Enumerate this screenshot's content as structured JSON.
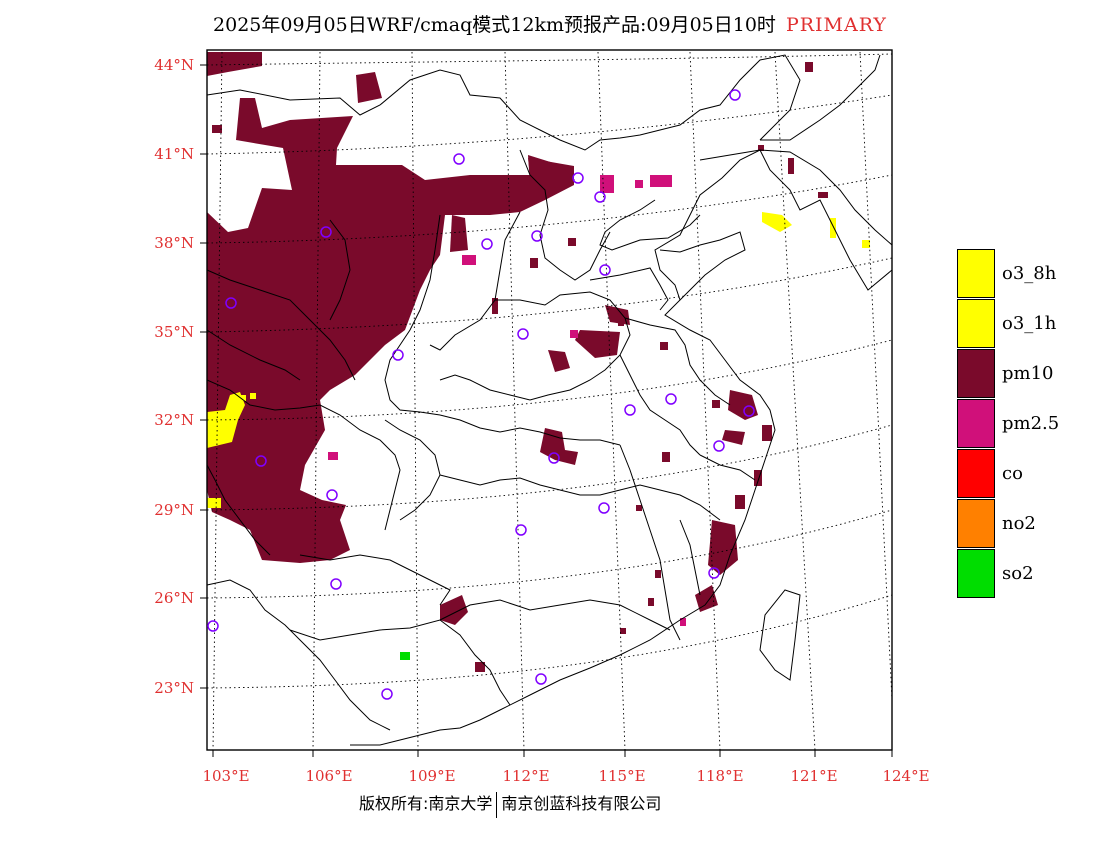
{
  "title": {
    "text": "2025年09月05日WRF/cmaq模式12km预报产品:09月05日10时",
    "tag": "PRIMARY",
    "tag_color": "#e03030"
  },
  "map": {
    "lat_labels": [
      "44°N",
      "41°N",
      "38°N",
      "35°N",
      "32°N",
      "29°N",
      "26°N",
      "23°N"
    ],
    "lon_labels": [
      "103°E",
      "106°E",
      "109°E",
      "112°E",
      "115°E",
      "118°E",
      "121°E",
      "124°E"
    ],
    "label_color": "#e03030",
    "pollutant_colors": {
      "o3_8h": "#ffff00",
      "o3_1h": "#ffff00",
      "pm10": "#7a0a2b",
      "pm2.5": "#d0107a",
      "co": "#ff0000",
      "no2": "#ff8000",
      "so2": "#00dd00"
    },
    "station_marker_color": "#8000ff"
  },
  "legend": [
    {
      "label": "o3_8h",
      "color": "#ffff00"
    },
    {
      "label": "o3_1h",
      "color": "#ffff00"
    },
    {
      "label": "pm10",
      "color": "#7a0a2b"
    },
    {
      "label": "pm2.5",
      "color": "#d0107a"
    },
    {
      "label": "co",
      "color": "#ff0000"
    },
    {
      "label": "no2",
      "color": "#ff8000"
    },
    {
      "label": "so2",
      "color": "#00dd00"
    }
  ],
  "footer": {
    "left": "版权所有:南京大学",
    "right": "南京创蓝科技有限公司"
  }
}
